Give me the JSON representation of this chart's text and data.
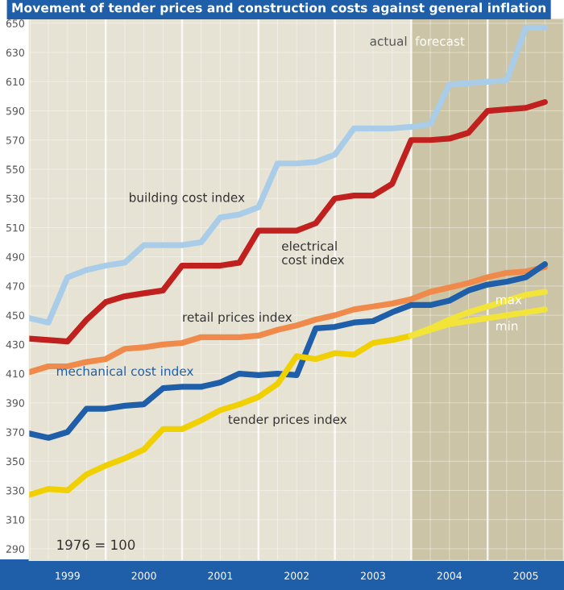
{
  "chart_data": {
    "type": "line",
    "title": "Movement of tender prices and construction costs against general inflation",
    "x": [
      1999.0,
      1999.25,
      1999.5,
      1999.75,
      2000.0,
      2000.25,
      2000.5,
      2000.75,
      2001.0,
      2001.25,
      2001.5,
      2001.75,
      2002.0,
      2002.25,
      2002.5,
      2002.75,
      2003.0,
      2003.25,
      2003.5,
      2003.75,
      2004.0,
      2004.25,
      2004.5,
      2004.75,
      2005.0,
      2005.25,
      2005.5,
      2005.75
    ],
    "series": [
      {
        "name": "building cost index",
        "color": "#a9cde8",
        "values": [
          448,
          445,
          476,
          481,
          484,
          486,
          498,
          498,
          498,
          500,
          517,
          519,
          524,
          554,
          554,
          555,
          560,
          578,
          578,
          578,
          579,
          581,
          608,
          609,
          610,
          611,
          647,
          647
        ]
      },
      {
        "name": "electrical\ncost index",
        "color": "#c0201e",
        "values": [
          434,
          433,
          432,
          447,
          459,
          463,
          465,
          467,
          484,
          484,
          484,
          486,
          508,
          508,
          508,
          513,
          530,
          532,
          532,
          540,
          570,
          570,
          571,
          575,
          590,
          591,
          592,
          596
        ]
      },
      {
        "name": "retail prices index",
        "color": "#f08a4b",
        "values": [
          411,
          415,
          415,
          418,
          420,
          427,
          428,
          430,
          431,
          435,
          435,
          435,
          436,
          440,
          443,
          447,
          450,
          454,
          456,
          458,
          461,
          466,
          469,
          472,
          476,
          479,
          480,
          483
        ]
      },
      {
        "name": "mechanical cost index",
        "color": "#1f5ea8",
        "values": [
          369,
          366,
          370,
          386,
          386,
          388,
          389,
          400,
          401,
          401,
          404,
          410,
          409,
          410,
          409,
          441,
          442,
          445,
          446,
          452,
          457,
          457,
          460,
          467,
          471,
          473,
          476,
          485
        ]
      },
      {
        "name": "tender prices index",
        "color": "#f0d000",
        "values": [
          327,
          331,
          330,
          341,
          347,
          352,
          358,
          372,
          372,
          378,
          385,
          389,
          394,
          403,
          422,
          420,
          424,
          423,
          431,
          433,
          436,
          null,
          null,
          null,
          null,
          null,
          null,
          null
        ]
      },
      {
        "name": "max",
        "color": "#f3e43a",
        "x": [
          2004.0,
          2004.25,
          2004.5,
          2004.75,
          2005.0,
          2005.25,
          2005.5,
          2005.75
        ],
        "values": [
          436,
          441,
          447,
          452,
          456,
          460,
          464,
          466
        ]
      },
      {
        "name": "min",
        "color": "#f3e43a",
        "x": [
          2004.0,
          2004.25,
          2004.5,
          2004.75,
          2005.0,
          2005.25,
          2005.5,
          2005.75
        ],
        "values": [
          436,
          440,
          444,
          446,
          448,
          450,
          452,
          454
        ]
      }
    ],
    "xlim": [
      1999.0,
      2006.0
    ],
    "xticks": [
      {
        "value": 1999.5,
        "label": "1999"
      },
      {
        "value": 2000.5,
        "label": "2000"
      },
      {
        "value": 2001.5,
        "label": "2001"
      },
      {
        "value": 2002.5,
        "label": "2002"
      },
      {
        "value": 2003.5,
        "label": "2003"
      },
      {
        "value": 2004.5,
        "label": "2004"
      },
      {
        "value": 2005.5,
        "label": "2005"
      }
    ],
    "ylim": [
      282,
      653
    ],
    "yticks": [
      290,
      310,
      330,
      350,
      370,
      390,
      410,
      430,
      450,
      470,
      490,
      510,
      530,
      550,
      570,
      590,
      610,
      630,
      650
    ],
    "bands": [
      {
        "axis": "x",
        "from": 2004.0,
        "to": 2006.0,
        "label": "forecast",
        "color": "#cbc4a6"
      }
    ],
    "annotations": [
      "actual",
      "1976 = 100"
    ],
    "grid": true
  }
}
